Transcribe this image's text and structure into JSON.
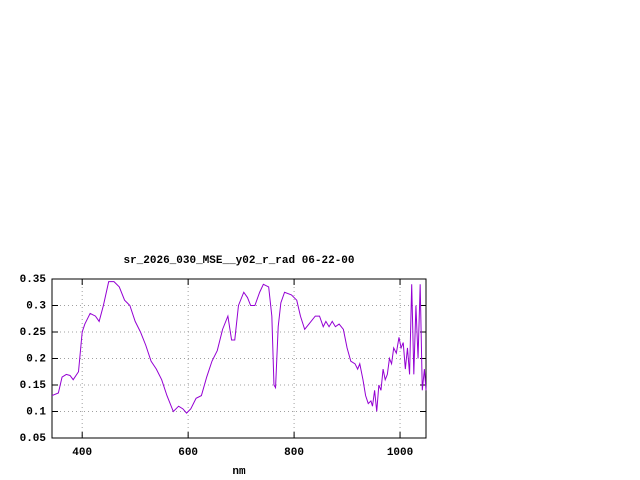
{
  "chart_data": {
    "type": "line",
    "title": "sr_2026_030_MSE__y02_r_rad 06-22-00",
    "x_label": "nm",
    "xlim": [
      343,
      1049
    ],
    "ylim": [
      0.05,
      0.35
    ],
    "xticks": [
      400,
      600,
      800,
      1000
    ],
    "yticks": [
      0.05,
      0.1,
      0.15,
      0.2,
      0.25,
      0.3,
      0.35
    ],
    "grid": true,
    "series": [
      {
        "color": "#9400d3",
        "x": [
          343,
          355,
          362,
          370,
          377,
          383,
          393,
          400,
          405,
          415,
          425,
          432,
          440,
          450,
          460,
          470,
          480,
          490,
          500,
          510,
          520,
          530,
          540,
          550,
          560,
          572,
          582,
          590,
          597,
          605,
          615,
          625,
          635,
          645,
          655,
          665,
          675,
          682,
          688,
          695,
          705,
          712,
          718,
          726,
          735,
          742,
          752,
          758,
          762,
          765,
          770,
          775,
          782,
          795,
          805,
          812,
          820,
          828,
          840,
          848,
          855,
          860,
          866,
          872,
          878,
          885,
          893,
          900,
          907,
          915,
          920,
          924,
          930,
          935,
          940,
          945,
          948,
          952,
          956,
          960,
          964,
          968,
          972,
          976,
          980,
          984,
          988,
          993,
          998,
          1002,
          1006,
          1010,
          1014,
          1018,
          1022,
          1026,
          1030,
          1034,
          1038,
          1042,
          1046,
          1049
        ],
        "values": [
          0.13,
          0.135,
          0.165,
          0.17,
          0.168,
          0.16,
          0.175,
          0.25,
          0.265,
          0.285,
          0.28,
          0.27,
          0.3,
          0.345,
          0.345,
          0.335,
          0.31,
          0.3,
          0.27,
          0.25,
          0.225,
          0.195,
          0.18,
          0.16,
          0.13,
          0.1,
          0.11,
          0.105,
          0.097,
          0.105,
          0.125,
          0.13,
          0.165,
          0.195,
          0.215,
          0.255,
          0.28,
          0.235,
          0.235,
          0.3,
          0.325,
          0.315,
          0.3,
          0.3,
          0.325,
          0.34,
          0.335,
          0.28,
          0.15,
          0.145,
          0.26,
          0.305,
          0.325,
          0.32,
          0.31,
          0.28,
          0.255,
          0.265,
          0.28,
          0.28,
          0.26,
          0.27,
          0.26,
          0.27,
          0.26,
          0.265,
          0.255,
          0.22,
          0.195,
          0.19,
          0.18,
          0.19,
          0.16,
          0.13,
          0.115,
          0.12,
          0.11,
          0.14,
          0.1,
          0.15,
          0.14,
          0.18,
          0.16,
          0.17,
          0.2,
          0.19,
          0.22,
          0.21,
          0.24,
          0.22,
          0.23,
          0.18,
          0.22,
          0.17,
          0.34,
          0.17,
          0.3,
          0.2,
          0.34,
          0.14,
          0.18,
          0.14
        ]
      }
    ]
  }
}
